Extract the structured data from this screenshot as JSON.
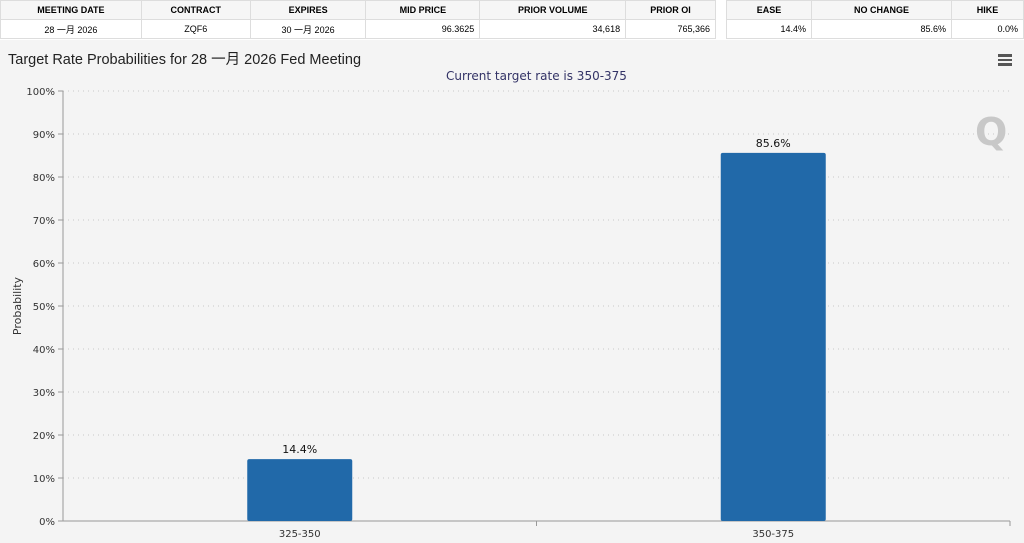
{
  "table1": {
    "headers": [
      "MEETING DATE",
      "CONTRACT",
      "EXPIRES",
      "MID PRICE",
      "PRIOR VOLUME",
      "PRIOR OI"
    ],
    "row": [
      "28 一月 2026",
      "ZQF6",
      "30 一月 2026",
      "96.3625",
      "34,618",
      "765,366"
    ]
  },
  "table2": {
    "headers": [
      "EASE",
      "NO CHANGE",
      "HIKE"
    ],
    "row": [
      "14.4%",
      "85.6%",
      "0.0%"
    ]
  },
  "chart_title": "Target Rate Probabilities for 28 一月 2026 Fed Meeting",
  "chart_data": {
    "type": "bar",
    "title": "Target Rate Probabilities for 28 一月 2026 Fed Meeting",
    "subtitle": "Current target rate is 350-375",
    "xlabel": "",
    "ylabel": "Probability",
    "categories": [
      "325-350",
      "350-375"
    ],
    "values": [
      14.4,
      85.6
    ],
    "data_labels": [
      "14.4%",
      "85.6%"
    ],
    "ylim": [
      0,
      100
    ],
    "yticks": [
      "0%",
      "10%",
      "20%",
      "30%",
      "40%",
      "50%",
      "60%",
      "70%",
      "80%",
      "90%",
      "100%"
    ],
    "grid": true,
    "bar_color": "#2169a9"
  },
  "menu_icon": "hamburger-icon"
}
